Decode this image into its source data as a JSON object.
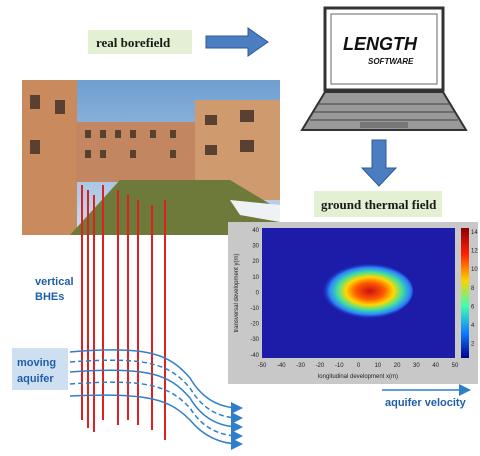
{
  "labels": {
    "real_borefield": "real borefield",
    "software_title": "LENGTH",
    "software_subtitle": "SOFTWARE",
    "ground_thermal_field": "ground thermal field",
    "vertical_bhes": [
      "vertical",
      "BHEs"
    ],
    "moving_aquifer": [
      "moving",
      "aquifer"
    ],
    "aquifer_velocity": "aquifer velocity"
  },
  "plot": {
    "y_axis_label": "transversal development y(m)",
    "x_axis_label": "longitudinal development x(m)",
    "yticks": [
      40,
      30,
      20,
      10,
      0,
      -10,
      -20,
      -30,
      -40
    ],
    "xticks": [
      -50,
      -40,
      -30,
      -20,
      -10,
      0,
      10,
      20,
      30,
      40,
      50
    ],
    "colorbar_ticks": [
      14,
      12,
      10,
      8,
      6,
      4,
      2
    ]
  }
}
